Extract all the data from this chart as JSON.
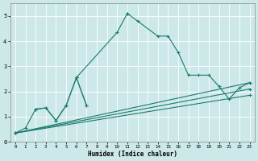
{
  "xlabel": "Humidex (Indice chaleur)",
  "xlim": [
    -0.5,
    23.5
  ],
  "ylim": [
    0,
    5.5
  ],
  "xticks": [
    0,
    1,
    2,
    3,
    4,
    5,
    6,
    7,
    8,
    9,
    10,
    11,
    12,
    13,
    14,
    15,
    16,
    17,
    18,
    19,
    20,
    21,
    22,
    23
  ],
  "yticks": [
    0,
    1,
    2,
    3,
    4,
    5
  ],
  "background_color": "#cde8e8",
  "grid_color": "#ffffff",
  "line_color": "#1a7a6e",
  "line_width": 0.8,
  "marker": "+",
  "marker_size": 3,
  "segments": [
    {
      "x": [
        0,
        1,
        2,
        3,
        4,
        5,
        6,
        7
      ],
      "y": [
        0.35,
        0.55,
        1.3,
        1.35,
        0.85,
        1.45,
        2.55,
        1.45
      ]
    },
    {
      "x": [
        11,
        12,
        14,
        15,
        16,
        17,
        18,
        19,
        20,
        21,
        22,
        23
      ],
      "y": [
        5.1,
        4.8,
        4.2,
        4.2,
        3.55,
        2.65,
        2.65,
        2.65,
        2.2,
        1.7,
        2.15,
        2.35
      ]
    },
    {
      "x": [
        6,
        10,
        11
      ],
      "y": [
        2.55,
        4.35,
        5.1
      ]
    },
    {
      "x": [
        2,
        3,
        4,
        5,
        6,
        7
      ],
      "y": [
        1.3,
        1.35,
        0.85,
        1.45,
        2.55,
        1.45
      ]
    },
    {
      "x": [
        0,
        23
      ],
      "y": [
        0.35,
        2.35
      ]
    },
    {
      "x": [
        0,
        23
      ],
      "y": [
        0.35,
        2.1
      ]
    },
    {
      "x": [
        0,
        23
      ],
      "y": [
        0.35,
        1.85
      ]
    }
  ],
  "line_segments_with_markers": [
    {
      "x": [
        0,
        1,
        2,
        3,
        4,
        5,
        6,
        7,
        11,
        12,
        14,
        15,
        16,
        17,
        18,
        19,
        20,
        21,
        22,
        23
      ],
      "y": [
        0.35,
        0.55,
        1.3,
        1.35,
        0.85,
        1.45,
        2.55,
        1.45,
        5.1,
        4.8,
        4.2,
        4.2,
        3.55,
        2.65,
        2.65,
        2.65,
        2.2,
        1.7,
        2.15,
        2.35
      ]
    }
  ]
}
